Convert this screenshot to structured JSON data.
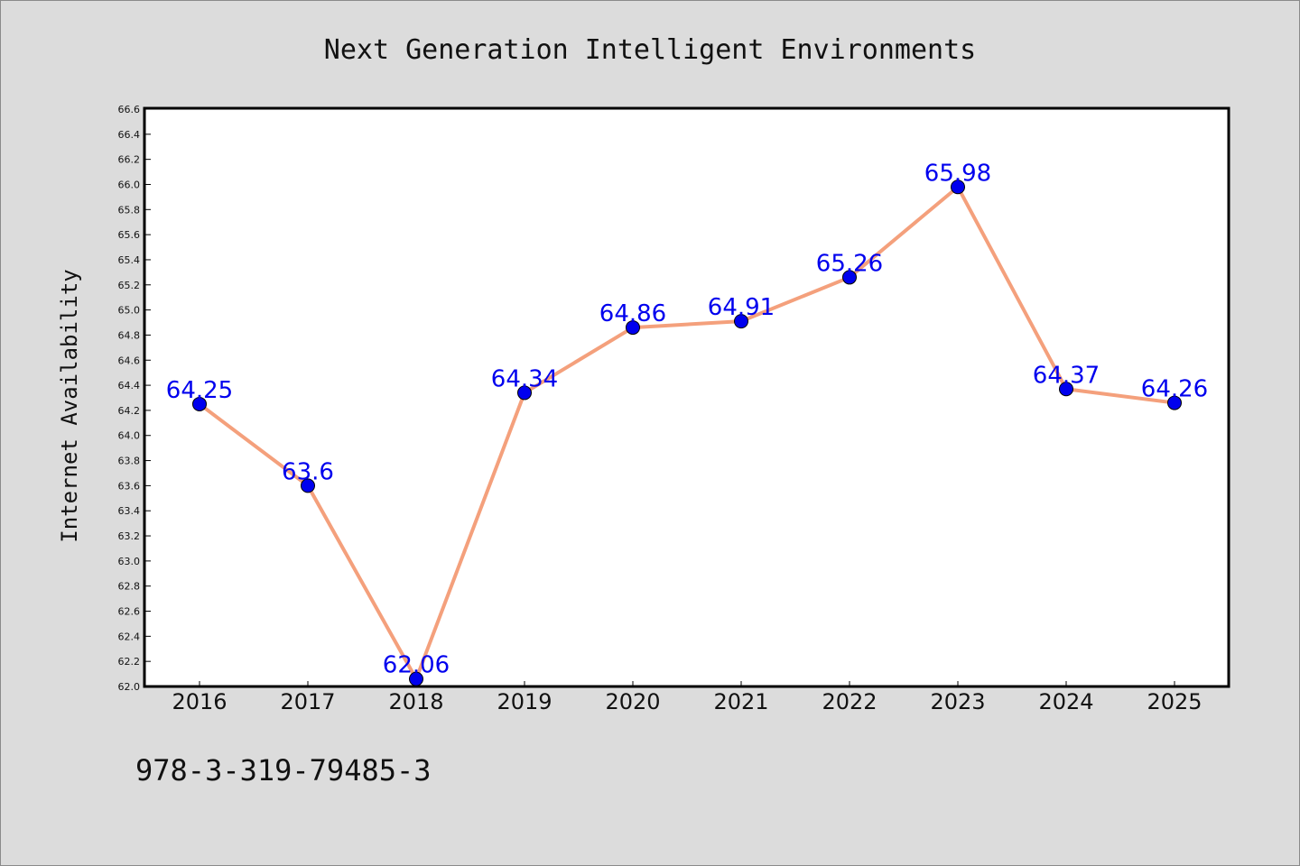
{
  "chart_data": {
    "type": "line",
    "title": "Next Generation Intelligent Environments",
    "xlabel": "",
    "ylabel": "Internet Availability",
    "categories": [
      "2016",
      "2017",
      "2018",
      "2019",
      "2020",
      "2021",
      "2022",
      "2023",
      "2024",
      "2025"
    ],
    "series": [
      {
        "values": [
          64.25,
          63.6,
          62.06,
          64.34,
          64.86,
          64.91,
          65.26,
          65.98,
          64.37,
          64.26
        ],
        "data_labels": [
          "64.25",
          "63.6",
          "62.06",
          "64.34",
          "64.86",
          "64.91",
          "65.26",
          "65.98",
          "64.37",
          "64.26"
        ],
        "line_color": "#f4a07c",
        "marker_color": "#0000ee",
        "label_color": "#0000ee"
      }
    ],
    "ylim": [
      62.0,
      66.6
    ],
    "yticks": [
      "62.0",
      "62.2",
      "62.4",
      "62.6",
      "62.8",
      "63.0",
      "63.2",
      "63.4",
      "63.6",
      "63.8",
      "64.0",
      "64.2",
      "64.4",
      "64.6",
      "64.8",
      "65.0",
      "65.2",
      "65.4",
      "65.6",
      "65.8",
      "66.0",
      "66.2",
      "66.4",
      "66.6"
    ],
    "grid": false,
    "legend": "none"
  },
  "footer": {
    "isbn": "978-3-319-79485-3"
  },
  "colors": {
    "background": "#dcdcdc",
    "plot_background": "#ffffff",
    "axis": "#000000"
  }
}
